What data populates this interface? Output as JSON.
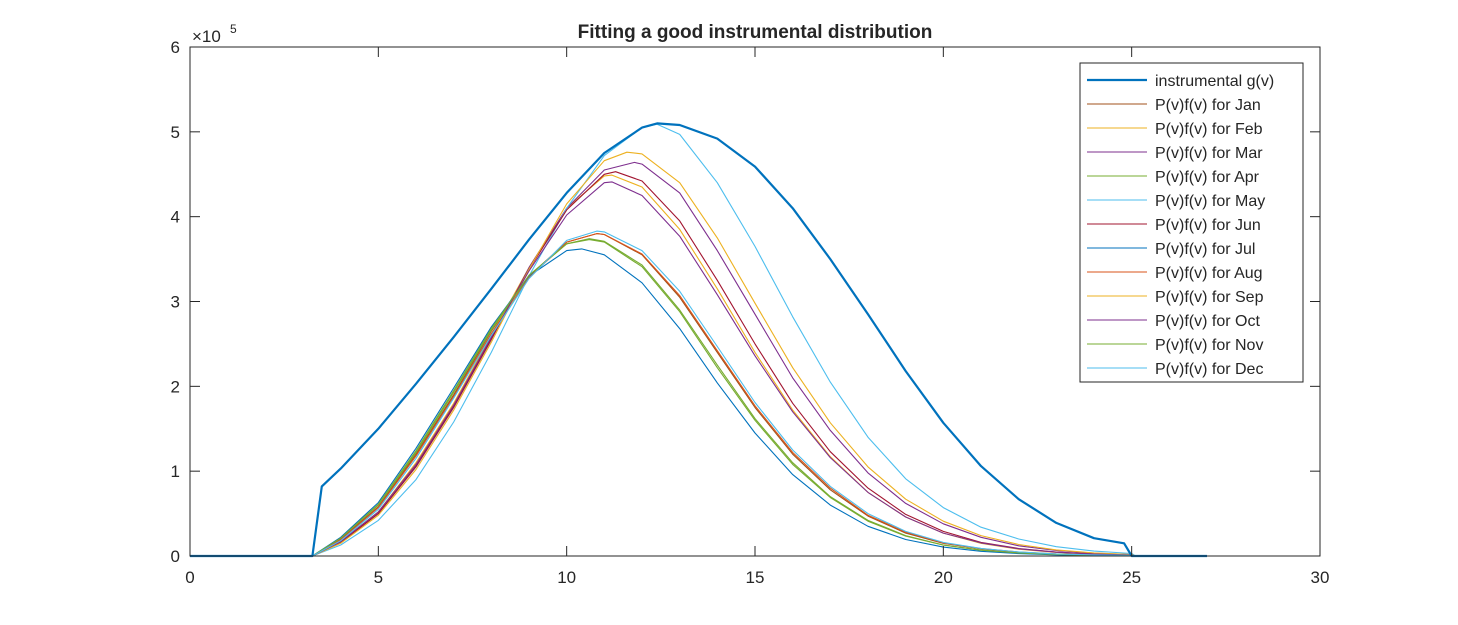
{
  "chart_data": {
    "type": "line",
    "title": "Fitting a good instrumental distribution",
    "xlabel": "",
    "ylabel": "",
    "xlim": [
      0,
      30
    ],
    "ylim": [
      0,
      600000
    ],
    "xticks": [
      "0",
      "5",
      "10",
      "15",
      "20",
      "25",
      "30"
    ],
    "yticks": [
      "0",
      "1",
      "2",
      "3",
      "4",
      "5",
      "6"
    ],
    "y_exponent_label": "×10",
    "y_exponent_power": "5",
    "grid": false,
    "legend_position": "top-right",
    "series": [
      {
        "name": "instrumental g(v)",
        "color": "#0072BD",
        "width": 2.2,
        "x": [
          0,
          3.25,
          3.5,
          4,
          5,
          6,
          7,
          8,
          9,
          10,
          11,
          12,
          12.4,
          13,
          14,
          15,
          16,
          17,
          18,
          19,
          20,
          21,
          22,
          23,
          24,
          24.8,
          25,
          27
        ],
        "y": [
          0,
          0,
          82000,
          103000,
          150000,
          203000,
          258000,
          315000,
          373000,
          428000,
          475000,
          505000,
          510000,
          508000,
          492000,
          459000,
          410000,
          350000,
          285000,
          218000,
          157000,
          106000,
          67000,
          39000,
          21000,
          15000,
          0,
          0
        ]
      },
      {
        "name": "P(v)f(v) for Jan",
        "color": "#A2521B",
        "width": 1.1,
        "x": [
          0,
          3.25,
          4,
          5,
          6,
          7,
          8,
          9,
          10,
          10.8,
          11,
          12,
          13,
          14,
          15,
          16,
          17,
          18,
          19,
          20,
          21,
          22,
          23,
          24,
          25,
          25.1,
          27
        ],
        "y": [
          0,
          0,
          20000,
          58000,
          120000,
          190000,
          265000,
          330000,
          370000,
          380000,
          379000,
          355000,
          305000,
          240000,
          175000,
          120000,
          78000,
          47000,
          27000,
          15000,
          8500,
          4500,
          2400,
          1200,
          700,
          0,
          0
        ]
      },
      {
        "name": "P(v)f(v) for Feb",
        "color": "#EDB120",
        "width": 1.1,
        "x": [
          0,
          3.25,
          4,
          5,
          6,
          7,
          8,
          9,
          10,
          11,
          11.2,
          12,
          13,
          14,
          15,
          16,
          17,
          18,
          19,
          20,
          21,
          22,
          23,
          24,
          25,
          25.1,
          27
        ],
        "y": [
          0,
          0,
          17000,
          52000,
          110000,
          180000,
          260000,
          340000,
          410000,
          448000,
          449000,
          435000,
          385000,
          315000,
          240000,
          172000,
          117000,
          75000,
          46000,
          27000,
          15000,
          8000,
          4200,
          2000,
          1000,
          0,
          0
        ]
      },
      {
        "name": "P(v)f(v) for Mar",
        "color": "#7E2F8E",
        "width": 1.1,
        "x": [
          0,
          3.25,
          4,
          5,
          6,
          7,
          8,
          9,
          10,
          11,
          11.8,
          12,
          13,
          14,
          15,
          16,
          17,
          18,
          19,
          20,
          21,
          22,
          23,
          24,
          25,
          25.1,
          27
        ],
        "y": [
          0,
          0,
          16000,
          50000,
          105000,
          175000,
          255000,
          340000,
          410000,
          455000,
          464000,
          462000,
          428000,
          360000,
          285000,
          210000,
          148000,
          98000,
          62000,
          38000,
          22000,
          12000,
          6500,
          3300,
          1600,
          0,
          0
        ]
      },
      {
        "name": "P(v)f(v) for Apr",
        "color": "#77AC30",
        "width": 1.1,
        "x": [
          0,
          3.25,
          4,
          5,
          6,
          7,
          8,
          9,
          10,
          10.6,
          11,
          12,
          13,
          14,
          15,
          16,
          17,
          18,
          19,
          20,
          21,
          22,
          23,
          24,
          25,
          25.1,
          27
        ],
        "y": [
          0,
          0,
          21000,
          60000,
          122000,
          193000,
          266000,
          330000,
          368000,
          374000,
          371000,
          343000,
          290000,
          225000,
          162000,
          110000,
          70000,
          42000,
          24000,
          13000,
          7000,
          3600,
          1800,
          900,
          500,
          0,
          0
        ]
      },
      {
        "name": "P(v)f(v) for May",
        "color": "#4DBEEE",
        "width": 1.1,
        "x": [
          0,
          3.25,
          4,
          5,
          6,
          7,
          8,
          9,
          10,
          11,
          12,
          12.4,
          13,
          14,
          15,
          16,
          17,
          18,
          19,
          20,
          21,
          22,
          23,
          24,
          25,
          25.1,
          27
        ],
        "y": [
          0,
          0,
          13000,
          42000,
          90000,
          158000,
          240000,
          330000,
          410000,
          472000,
          505000,
          509000,
          497000,
          440000,
          365000,
          282000,
          205000,
          140000,
          91000,
          57000,
          34000,
          20000,
          11000,
          5800,
          3000,
          0,
          0
        ]
      },
      {
        "name": "P(v)f(v) for Jun",
        "color": "#A2142F",
        "width": 1.1,
        "x": [
          0,
          3.25,
          4,
          5,
          6,
          7,
          8,
          9,
          10,
          11,
          11.3,
          12,
          13,
          14,
          15,
          16,
          17,
          18,
          19,
          20,
          21,
          22,
          23,
          24,
          25,
          25.1,
          27
        ],
        "y": [
          0,
          0,
          16000,
          50000,
          106000,
          176000,
          256000,
          338000,
          408000,
          450000,
          453000,
          442000,
          395000,
          325000,
          250000,
          180000,
          123000,
          80000,
          49000,
          29000,
          16000,
          8800,
          4600,
          2300,
          1100,
          0,
          0
        ]
      },
      {
        "name": "P(v)f(v) for Jul",
        "color": "#0072BD",
        "width": 1.1,
        "x": [
          0,
          3.25,
          4,
          5,
          6,
          7,
          8,
          9,
          10,
          10.4,
          11,
          12,
          13,
          14,
          15,
          16,
          17,
          18,
          19,
          20,
          21,
          22,
          23,
          24,
          25,
          25.1,
          27
        ],
        "y": [
          0,
          0,
          22000,
          63000,
          127000,
          198000,
          270000,
          330000,
          360000,
          362000,
          355000,
          322000,
          268000,
          204000,
          145000,
          96000,
          60000,
          35000,
          19500,
          10500,
          5500,
          2800,
          1400,
          700,
          350,
          0,
          0
        ]
      },
      {
        "name": "P(v)f(v) for Aug",
        "color": "#D95319",
        "width": 1.1,
        "x": [
          0,
          3.25,
          4,
          5,
          6,
          7,
          8,
          9,
          10,
          10.8,
          11,
          12,
          13,
          14,
          15,
          16,
          17,
          18,
          19,
          20,
          21,
          22,
          23,
          24,
          25,
          25.1,
          27
        ],
        "y": [
          0,
          0,
          19000,
          57000,
          118000,
          188000,
          262000,
          328000,
          370000,
          380000,
          379000,
          356000,
          307000,
          242000,
          177000,
          122000,
          80000,
          48000,
          28000,
          15500,
          8700,
          4700,
          2500,
          1300,
          700,
          0,
          0
        ]
      },
      {
        "name": "P(v)f(v) for Sep",
        "color": "#EDB120",
        "width": 1.1,
        "x": [
          0,
          3.25,
          4,
          5,
          6,
          7,
          8,
          9,
          10,
          11,
          11.6,
          12,
          13,
          14,
          15,
          16,
          17,
          18,
          19,
          20,
          21,
          22,
          23,
          24,
          25,
          25.1,
          27
        ],
        "y": [
          0,
          0,
          15000,
          48000,
          102000,
          172000,
          252000,
          338000,
          415000,
          466000,
          476000,
          474000,
          440000,
          375000,
          298000,
          222000,
          157000,
          105000,
          67000,
          41000,
          24000,
          13500,
          7200,
          3700,
          1800,
          0,
          0
        ]
      },
      {
        "name": "P(v)f(v) for Oct",
        "color": "#7E2F8E",
        "width": 1.1,
        "x": [
          0,
          3.25,
          4,
          5,
          6,
          7,
          8,
          9,
          10,
          11,
          11.2,
          12,
          13,
          14,
          15,
          16,
          17,
          18,
          19,
          20,
          21,
          22,
          23,
          24,
          25,
          25.1,
          27
        ],
        "y": [
          0,
          0,
          17000,
          52000,
          108000,
          178000,
          258000,
          336000,
          402000,
          440000,
          441000,
          425000,
          377000,
          308000,
          236000,
          170000,
          116000,
          75000,
          46000,
          27000,
          15500,
          8500,
          4500,
          2300,
          1100,
          0,
          0
        ]
      },
      {
        "name": "P(v)f(v) for Nov",
        "color": "#77AC30",
        "width": 1.1,
        "x": [
          0,
          3.25,
          4,
          5,
          6,
          7,
          8,
          9,
          10,
          10.6,
          11,
          12,
          13,
          14,
          15,
          16,
          17,
          18,
          19,
          20,
          21,
          22,
          23,
          24,
          25,
          25.1,
          27
        ],
        "y": [
          0,
          0,
          21000,
          61000,
          124000,
          195000,
          268000,
          331000,
          368000,
          373000,
          370000,
          341000,
          288000,
          222000,
          160000,
          108000,
          69000,
          41000,
          23500,
          12800,
          6800,
          3500,
          1800,
          900,
          450,
          0,
          0
        ]
      },
      {
        "name": "P(v)f(v) for Dec",
        "color": "#4DBEEE",
        "width": 1.1,
        "x": [
          0,
          3.25,
          4,
          5,
          6,
          7,
          8,
          9,
          10,
          10.8,
          11,
          12,
          13,
          14,
          15,
          16,
          17,
          18,
          19,
          20,
          21,
          22,
          23,
          24,
          25,
          25.1,
          27
        ],
        "y": [
          0,
          0,
          18000,
          55000,
          115000,
          186000,
          260000,
          327000,
          372000,
          383000,
          382000,
          360000,
          312000,
          247000,
          181000,
          125000,
          82000,
          50000,
          29000,
          16000,
          9000,
          4800,
          2500,
          1300,
          700,
          0,
          0
        ]
      }
    ]
  }
}
